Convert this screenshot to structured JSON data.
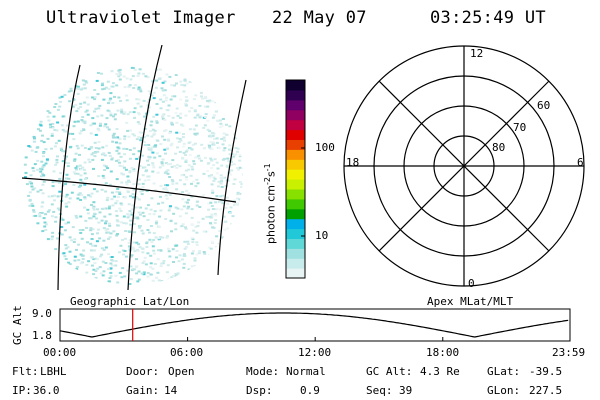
{
  "header": {
    "title": "Ultraviolet Imager",
    "date": "22 May 07",
    "time": "03:25:49 UT"
  },
  "colorbar": {
    "unit_label": "photon cm-2s-1",
    "unit_base": "photon cm",
    "unit_exp1": "-2",
    "unit_mid": "s",
    "unit_exp2": "-1",
    "ticks": [
      {
        "value": 100,
        "label": "100"
      },
      {
        "value": 10,
        "label": "10"
      }
    ],
    "colors": [
      "#e8f4f4",
      "#c8ecec",
      "#a0e0e0",
      "#60d8d8",
      "#20c8d8",
      "#00b0e8",
      "#00a000",
      "#40c800",
      "#88e000",
      "#c8f000",
      "#f0f000",
      "#f8c800",
      "#f89000",
      "#e84000",
      "#e00000",
      "#c00040",
      "#900060",
      "#60006c",
      "#300050",
      "#100030"
    ]
  },
  "image_panel": {
    "label": "Geographic Lat/Lon"
  },
  "polar_plot": {
    "label": "Apex MLat/MLT",
    "mlt_labels": [
      {
        "mlt": "12"
      },
      {
        "mlt": "18"
      },
      {
        "mlt": "6"
      },
      {
        "mlt": "0"
      }
    ],
    "lat_labels": [
      {
        "lat": "60"
      },
      {
        "lat": "70"
      },
      {
        "lat": "80"
      }
    ]
  },
  "alt_plot": {
    "ylabel": "GC Alt",
    "yticks": [
      "9.0",
      "1.8"
    ],
    "xticks": [
      "00:00",
      "06:00",
      "12:00",
      "18:00",
      "23:59"
    ],
    "current_time_marker": "03:25"
  },
  "info": {
    "rows": [
      [
        {
          "label": "Flt:",
          "value": "LBHL"
        },
        {
          "label": "Door:",
          "value": "Open"
        },
        {
          "label": "Mode:",
          "value": "Normal"
        },
        {
          "label": "GC Alt:",
          "value": "4.3 Re"
        },
        {
          "label": "GLat:",
          "value": "-39.5"
        }
      ],
      [
        {
          "label": "IP:",
          "value": "36.0"
        },
        {
          "label": "Gain:",
          "value": "14"
        },
        {
          "label": "Dsp:",
          "value": "0.9"
        },
        {
          "label": "Seq:",
          "value": "39"
        },
        {
          "label": "GLon:",
          "value": "227.5"
        }
      ]
    ]
  }
}
